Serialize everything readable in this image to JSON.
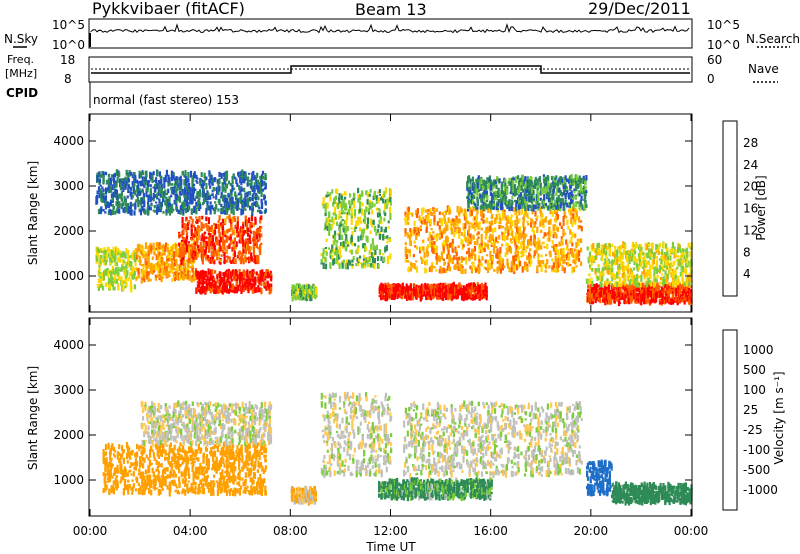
{
  "header": {
    "station": "Pykkvibaer (fitACF)",
    "beam": "Beam 13",
    "date": "29/Dec/2011"
  },
  "sky_panel": {
    "left_label": "N.Sky",
    "left_ticks": [
      "10^5",
      "10^0"
    ],
    "right_ticks": [
      "10^5",
      "10^0"
    ],
    "right_label": "N.Search"
  },
  "freq_panel": {
    "left_label_1": "Freq.",
    "left_label_2": "[MHz]",
    "left_ticks": [
      "18",
      "8"
    ],
    "right_ticks": [
      "60",
      "0"
    ],
    "right_label": "Nave"
  },
  "cpid": {
    "label": "CPID",
    "text": "normal (fast stereo) 153"
  },
  "colors": {
    "power": [
      "#0000ff",
      "#2050c0",
      "#2e8b57",
      "#7ccd3c",
      "#ffd700",
      "#ffa500",
      "#ff6000",
      "#ff0000"
    ],
    "velocity": [
      "#1e3cff",
      "#1e6ec8",
      "#2e8b57",
      "#7ccd3c",
      "#c8c8c8",
      "#ffc850",
      "#ffa000",
      "#ff7800",
      "#ff0000"
    ],
    "velocity_gray": "#c0c0bc"
  },
  "chart_data": [
    {
      "type": "heatmap",
      "name": "Power",
      "ylabel": "Slant Range [km]",
      "yticks": [
        "4000",
        "3000",
        "2000",
        "1000"
      ],
      "ylim": [
        200,
        4600
      ],
      "xlim_hours": [
        0,
        24
      ],
      "colorbar_label": "Power [dB]",
      "colorbar_ticks": [
        "28",
        "24",
        "20",
        "16",
        "12",
        "8",
        "4"
      ],
      "colorbar_range": [
        0,
        32
      ],
      "echo_bands": [
        {
          "t": [
            0.2,
            1.8
          ],
          "r": [
            700,
            1600
          ],
          "db": 16
        },
        {
          "t": [
            1.8,
            4.2
          ],
          "r": [
            900,
            1700
          ],
          "db": 22
        },
        {
          "t": [
            3.5,
            6.8
          ],
          "r": [
            1300,
            2300
          ],
          "db": 27
        },
        {
          "t": [
            4.2,
            7.2
          ],
          "r": [
            650,
            1100
          ],
          "db": 30
        },
        {
          "t": [
            0.2,
            7.0
          ],
          "r": [
            2400,
            3300
          ],
          "db": 8
        },
        {
          "t": [
            8.0,
            9.0
          ],
          "r": [
            500,
            800
          ],
          "db": 14
        },
        {
          "t": [
            9.2,
            12.0
          ],
          "r": [
            1200,
            2900
          ],
          "db": 14
        },
        {
          "t": [
            11.5,
            15.8
          ],
          "r": [
            500,
            800
          ],
          "db": 30
        },
        {
          "t": [
            12.5,
            19.6
          ],
          "r": [
            1100,
            2500
          ],
          "db": 22
        },
        {
          "t": [
            15.0,
            19.8
          ],
          "r": [
            2500,
            3200
          ],
          "db": 10
        },
        {
          "t": [
            19.8,
            24.0
          ],
          "r": [
            400,
            800
          ],
          "db": 29
        },
        {
          "t": [
            19.8,
            24.0
          ],
          "r": [
            800,
            1700
          ],
          "db": 17
        }
      ]
    },
    {
      "type": "heatmap",
      "name": "Velocity",
      "ylabel": "Slant Range [km]",
      "yticks": [
        "4000",
        "3000",
        "2000",
        "1000"
      ],
      "ylim": [
        200,
        4600
      ],
      "xlim_hours": [
        0,
        24
      ],
      "xlabel": "Time UT",
      "xticks": [
        "00:00",
        "04:00",
        "08:00",
        "12:00",
        "16:00",
        "20:00",
        "00:00"
      ],
      "colorbar_label": "Velocity [m s⁻¹]",
      "colorbar_ticks": [
        "1000",
        "500",
        "100",
        "25",
        "-25",
        "-100",
        "-500",
        "-1000"
      ],
      "echo_bands": [
        {
          "t": [
            0.5,
            7.0
          ],
          "r": [
            700,
            1800
          ],
          "v": -300
        },
        {
          "t": [
            2.0,
            7.2
          ],
          "r": [
            1800,
            2700
          ],
          "v": 0
        },
        {
          "t": [
            8.0,
            9.0
          ],
          "r": [
            500,
            800
          ],
          "v": -100
        },
        {
          "t": [
            9.2,
            12.0
          ],
          "r": [
            1100,
            2900
          ],
          "v": 0
        },
        {
          "t": [
            11.5,
            16.0
          ],
          "r": [
            600,
            1000
          ],
          "v": 150
        },
        {
          "t": [
            12.5,
            19.6
          ],
          "r": [
            1100,
            2700
          ],
          "v": 0
        },
        {
          "t": [
            19.8,
            20.8
          ],
          "r": [
            700,
            1400
          ],
          "v": 800
        },
        {
          "t": [
            20.8,
            24.0
          ],
          "r": [
            500,
            900
          ],
          "v": 200
        }
      ]
    }
  ]
}
